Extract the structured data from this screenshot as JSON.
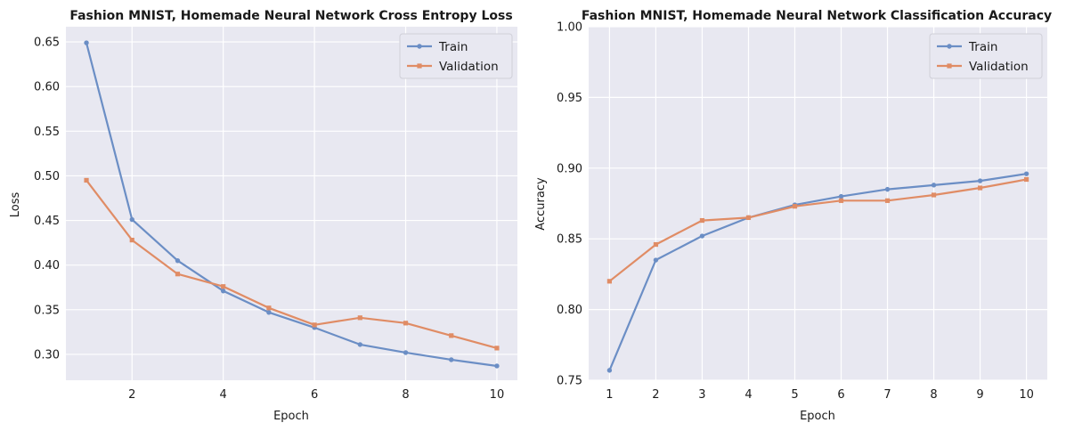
{
  "colors": {
    "train": "#6b8ec5",
    "validation": "#e08c65",
    "plot_bg": "#e8e8f1",
    "grid": "#ffffff"
  },
  "chart_data": [
    {
      "type": "line",
      "title": "Fashion MNIST, Homemade Neural Network Cross Entropy Loss",
      "xlabel": "Epoch",
      "ylabel": "Loss",
      "x": [
        1,
        2,
        3,
        4,
        5,
        6,
        7,
        8,
        9,
        10
      ],
      "xlim": [
        0.55,
        10.45
      ],
      "ylim": [
        0.271,
        0.667
      ],
      "xticks": [
        2,
        4,
        6,
        8,
        10
      ],
      "yticks": [
        0.3,
        0.35,
        0.4,
        0.45,
        0.5,
        0.55,
        0.6,
        0.65
      ],
      "series": [
        {
          "name": "Train",
          "marker": "circle",
          "values": [
            0.649,
            0.451,
            0.405,
            0.371,
            0.347,
            0.33,
            0.311,
            0.302,
            0.294,
            0.287
          ]
        },
        {
          "name": "Validation",
          "marker": "square",
          "values": [
            0.495,
            0.428,
            0.39,
            0.376,
            0.352,
            0.333,
            0.341,
            0.335,
            0.321,
            0.307
          ]
        }
      ],
      "grid": true,
      "legend_position": "top-right"
    },
    {
      "type": "line",
      "title": "Fashion MNIST, Homemade Neural Network Classification Accuracy",
      "xlabel": "Epoch",
      "ylabel": "Accuracy",
      "x": [
        1,
        2,
        3,
        4,
        5,
        6,
        7,
        8,
        9,
        10
      ],
      "xlim": [
        0.55,
        10.45
      ],
      "ylim": [
        0.75,
        1.0
      ],
      "xticks": [
        1,
        2,
        3,
        4,
        5,
        6,
        7,
        8,
        9,
        10
      ],
      "yticks": [
        0.75,
        0.8,
        0.85,
        0.9,
        0.95,
        1.0
      ],
      "series": [
        {
          "name": "Train",
          "marker": "circle",
          "values": [
            0.757,
            0.835,
            0.852,
            0.865,
            0.874,
            0.88,
            0.885,
            0.888,
            0.891,
            0.896
          ]
        },
        {
          "name": "Validation",
          "marker": "square",
          "values": [
            0.82,
            0.846,
            0.863,
            0.865,
            0.873,
            0.877,
            0.877,
            0.881,
            0.886,
            0.892
          ]
        }
      ],
      "grid": true,
      "legend_position": "top-right"
    }
  ]
}
